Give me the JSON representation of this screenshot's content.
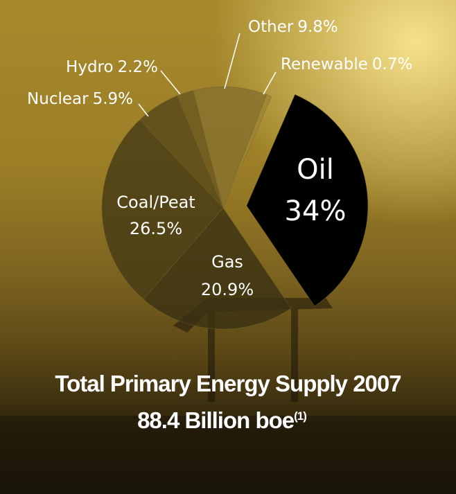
{
  "chart_data": {
    "type": "pie",
    "title": "Total Primary Energy Supply 2007",
    "subtitle": "88.4 Billion boe",
    "footnote_marker": "(1)",
    "categories": [
      "Oil",
      "Gas",
      "Coal/Peat",
      "Nuclear",
      "Hydro",
      "Other",
      "Renewable"
    ],
    "values": [
      34,
      20.9,
      26.5,
      5.9,
      2.2,
      9.8,
      0.7
    ],
    "value_labels": [
      "34%",
      "20.9%",
      "26.5%",
      "5.9%",
      "2.2%",
      "9.8%",
      "0.7%"
    ],
    "colors": [
      "#000000",
      "#3b3212",
      "#463b15",
      "#56481a",
      "#6a5820",
      "#86712e",
      "#9c8536"
    ]
  }
}
